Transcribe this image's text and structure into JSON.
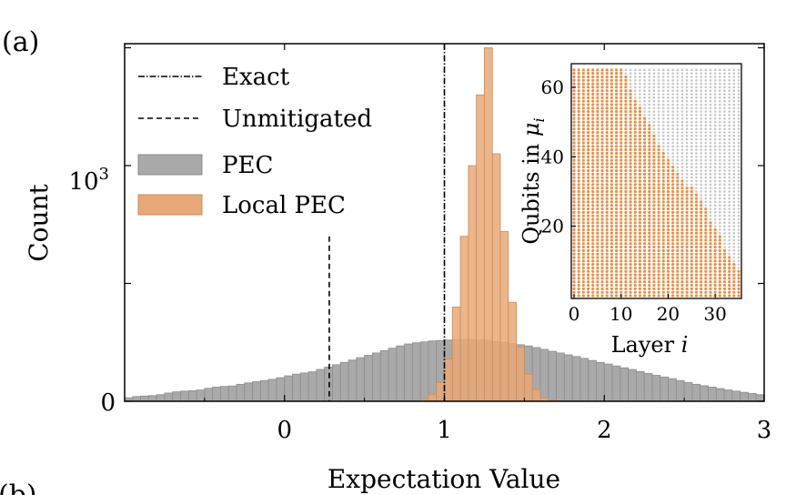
{
  "panel_label": "(a)",
  "panel_label_next": "(b)",
  "chart_data": [
    {
      "type": "bar",
      "subtype": "histogram",
      "xlabel": "Expectation Value",
      "ylabel": "Count",
      "xlim": [
        -1.0,
        3.0
      ],
      "bin_width": 0.05,
      "x_ticks": [
        0,
        1,
        2,
        3
      ],
      "y_tick_labels": [
        "0",
        "10^3"
      ],
      "legend_position": "top-left",
      "reference_lines": [
        {
          "name": "Exact",
          "x": 1.0,
          "style": "dash-dot",
          "color": "#000000"
        },
        {
          "name": "Unmitigated",
          "x": 0.28,
          "style": "dashed",
          "color": "#000000",
          "top": 700
        }
      ],
      "series": [
        {
          "name": "PEC",
          "color": "#a9a9a9",
          "edge": "#8c8c8c",
          "bins_start": -1.0,
          "values": [
            15,
            20,
            22,
            24,
            28,
            35,
            40,
            43,
            45,
            48,
            55,
            60,
            63,
            65,
            72,
            78,
            83,
            88,
            93,
            100,
            108,
            115,
            120,
            125,
            135,
            145,
            155,
            165,
            175,
            185,
            195,
            205,
            215,
            225,
            235,
            243,
            248,
            252,
            256,
            258,
            260,
            262,
            263,
            262,
            260,
            258,
            254,
            250,
            245,
            240,
            235,
            228,
            220,
            212,
            205,
            197,
            190,
            182,
            173,
            165,
            158,
            150,
            142,
            135,
            126,
            118,
            110,
            103,
            96,
            88,
            80,
            72,
            66,
            60,
            54,
            48,
            43,
            38,
            33,
            28
          ]
        },
        {
          "name": "Local PEC",
          "color": "#e9a877",
          "edge": "#c98d5e",
          "bins_start": -1.0,
          "values": [
            0,
            0,
            0,
            0,
            0,
            0,
            0,
            0,
            0,
            0,
            0,
            0,
            0,
            0,
            0,
            0,
            0,
            0,
            0,
            0,
            0,
            0,
            0,
            0,
            0,
            0,
            0,
            0,
            0,
            0,
            0,
            0,
            0,
            0,
            0,
            0,
            0,
            10,
            30,
            80,
            180,
            400,
            700,
            1000,
            1300,
            1500,
            1050,
            720,
            420,
            230,
            115,
            50,
            15,
            5,
            0,
            0,
            0,
            0,
            0,
            0,
            0,
            0,
            0,
            0,
            0,
            0,
            0,
            0,
            0,
            0,
            0,
            0,
            0,
            0,
            0,
            0,
            0,
            0,
            0,
            0
          ]
        }
      ]
    },
    {
      "type": "scatter",
      "subtype": "inset-occupancy-grid",
      "xlabel": "Layer i",
      "ylabel": "Qubits in μ_i",
      "xlim": [
        0,
        35
      ],
      "ylim": [
        0,
        66
      ],
      "x_ticks": [
        0,
        10,
        20,
        30
      ],
      "y_ticks": [
        20,
        40,
        60
      ],
      "active_color": "#e8904a",
      "inactive_color": "#c8c8c8",
      "layers": 36,
      "qubits": 66,
      "active_qubit_count_per_layer": [
        66,
        66,
        66,
        66,
        66,
        66,
        66,
        66,
        66,
        66,
        66,
        64,
        60,
        57,
        55,
        52,
        50,
        47,
        44,
        42,
        40,
        38,
        36,
        34,
        32,
        32,
        30,
        28,
        26,
        22,
        20,
        18,
        14,
        12,
        10,
        8
      ]
    }
  ]
}
